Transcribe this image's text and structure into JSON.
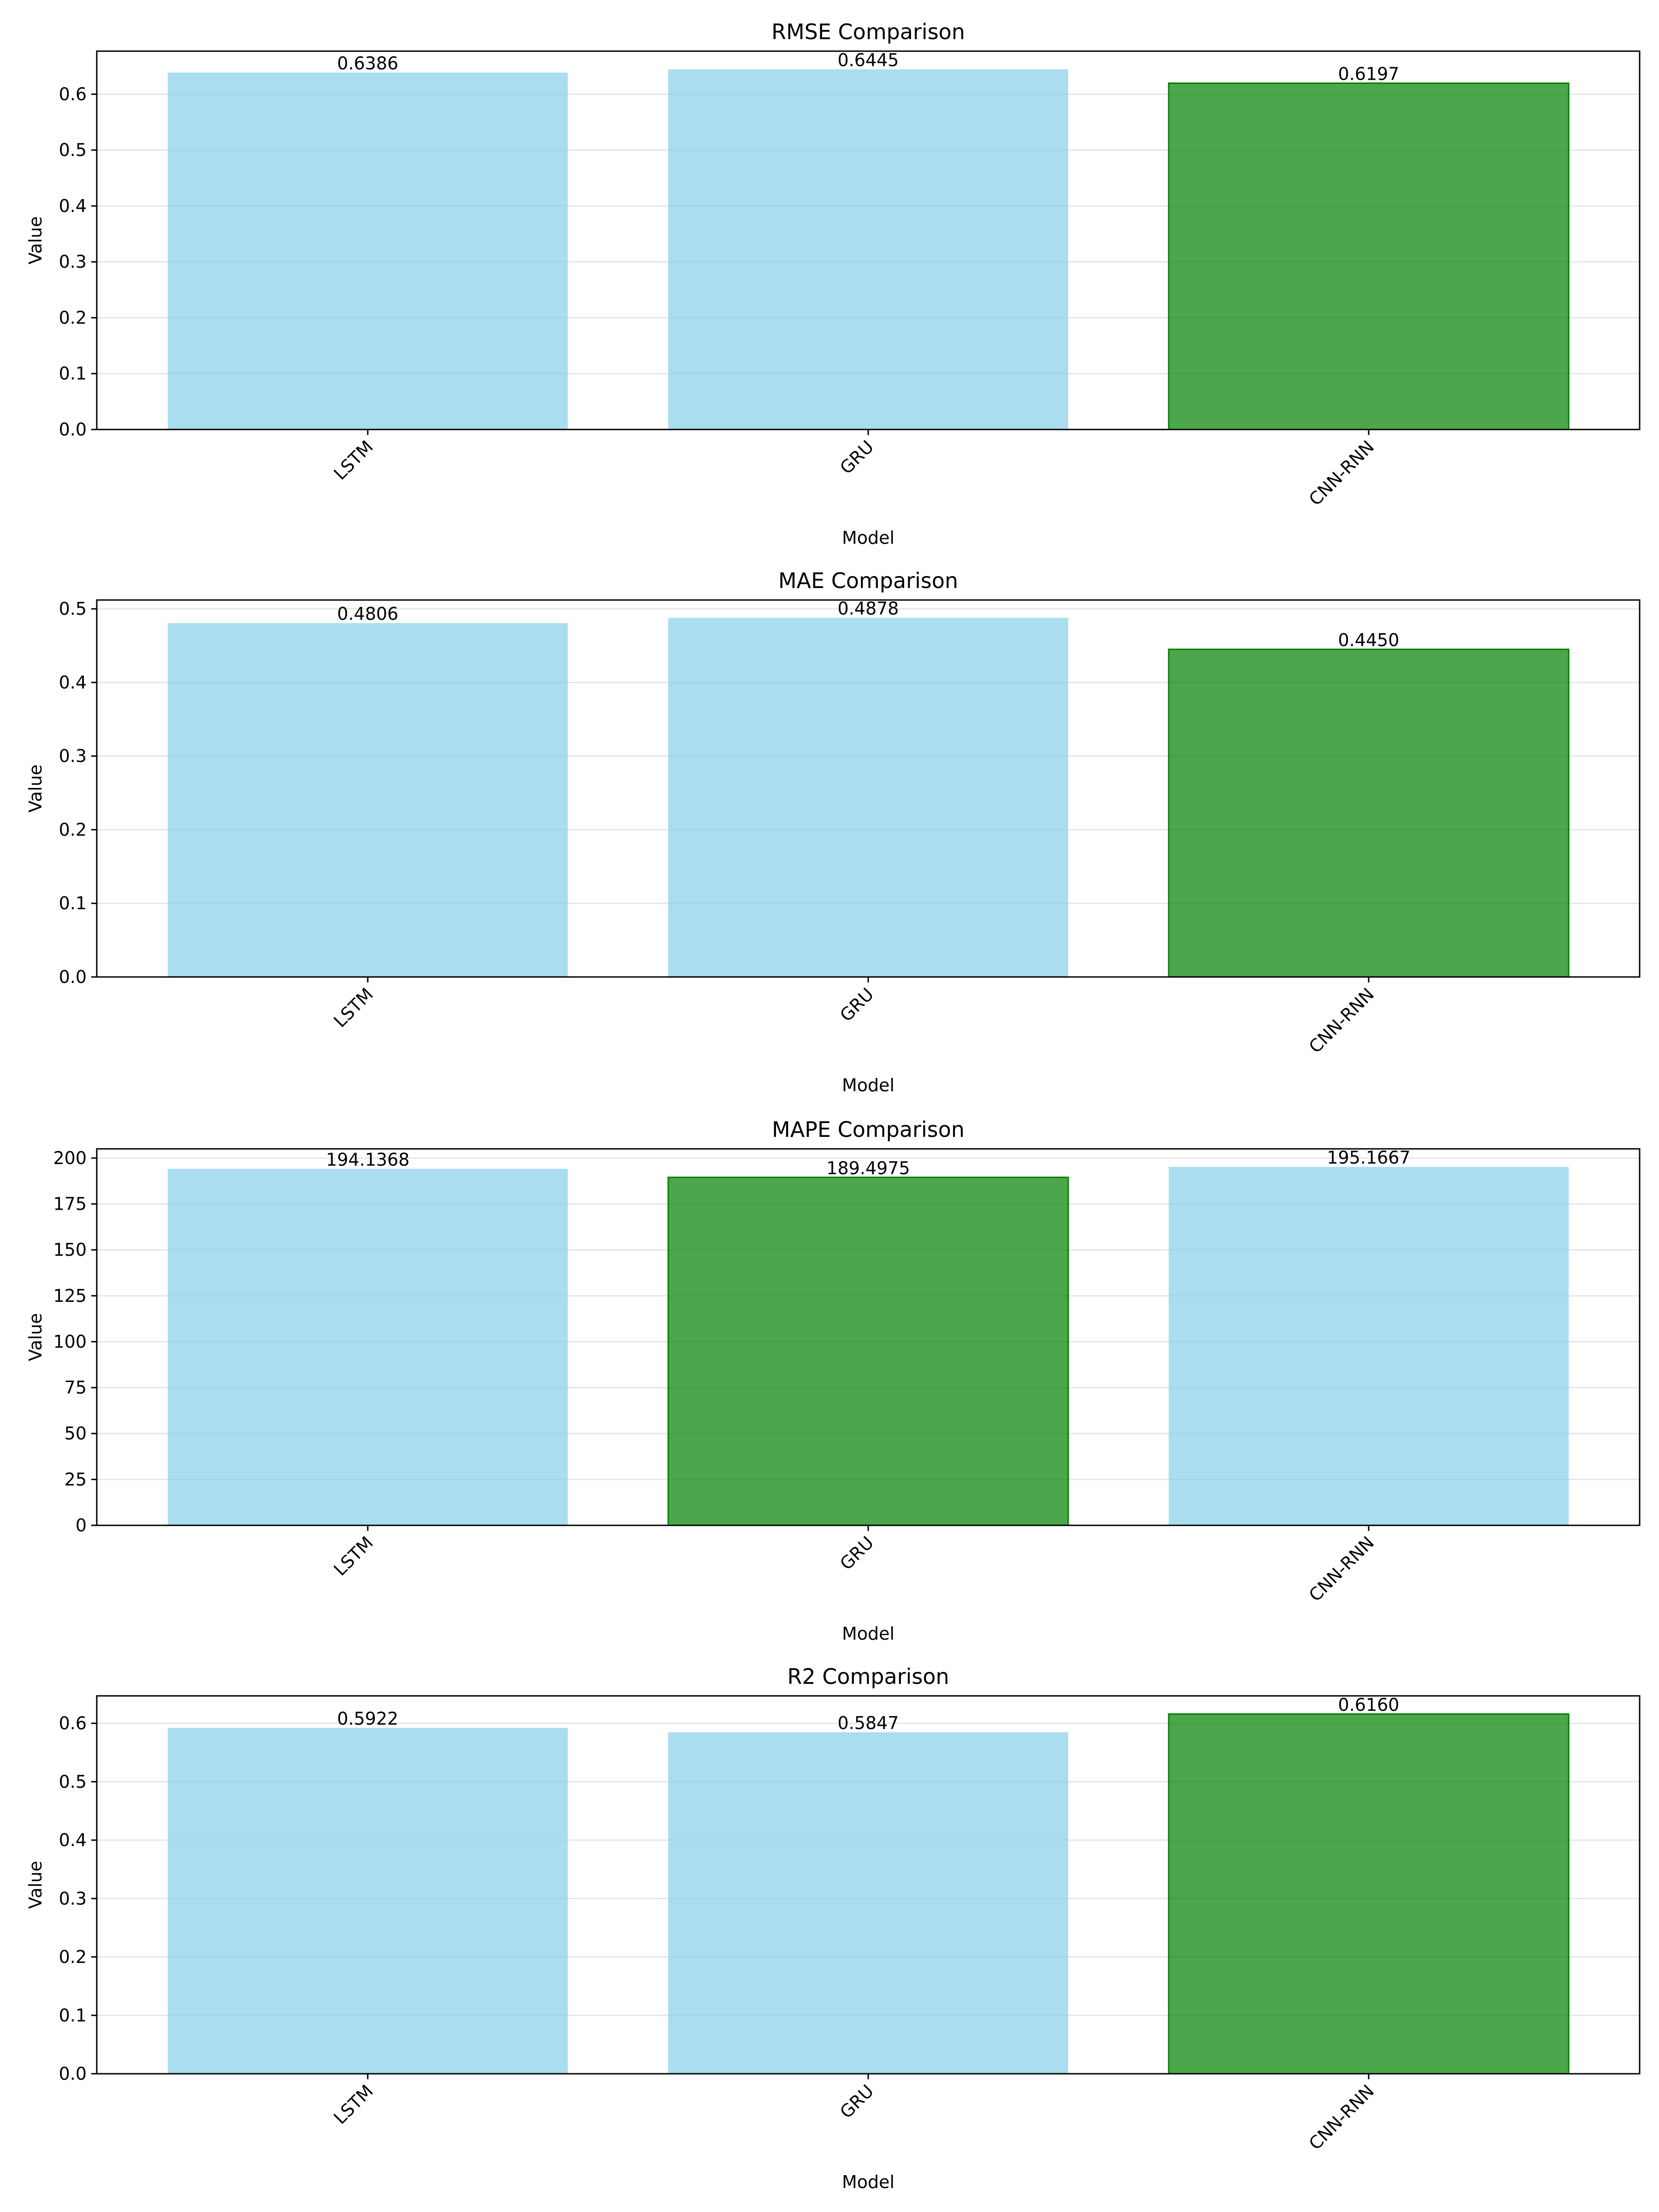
{
  "colors": {
    "default_bar": "#87ceeb",
    "best_bar": "#008000",
    "grid": "#e6e6e6",
    "axes": "#000000"
  },
  "chart_data": [
    {
      "type": "bar",
      "title": "RMSE Comparison",
      "xlabel": "Model",
      "ylabel": "Value",
      "categories": [
        "LSTM",
        "GRU",
        "CNN-RNN"
      ],
      "values": [
        0.6386,
        0.6445,
        0.6197
      ],
      "value_labels": [
        "0.6386",
        "0.6445",
        "0.6197"
      ],
      "highlight_index": 2,
      "ylim": [
        0,
        0.677
      ],
      "yticks": [
        0.0,
        0.1,
        0.2,
        0.3,
        0.4,
        0.5,
        0.6
      ],
      "ytick_labels": [
        "0.0",
        "0.1",
        "0.2",
        "0.3",
        "0.4",
        "0.5",
        "0.6"
      ],
      "grid": true,
      "legend": "none"
    },
    {
      "type": "bar",
      "title": "MAE Comparison",
      "xlabel": "Model",
      "ylabel": "Value",
      "categories": [
        "LSTM",
        "GRU",
        "CNN-RNN"
      ],
      "values": [
        0.4806,
        0.4878,
        0.445
      ],
      "value_labels": [
        "0.4806",
        "0.4878",
        "0.4450"
      ],
      "highlight_index": 2,
      "ylim": [
        0,
        0.512
      ],
      "yticks": [
        0.0,
        0.1,
        0.2,
        0.3,
        0.4,
        0.5
      ],
      "ytick_labels": [
        "0.0",
        "0.1",
        "0.2",
        "0.3",
        "0.4",
        "0.5"
      ],
      "grid": true,
      "legend": "none"
    },
    {
      "type": "bar",
      "title": "MAPE Comparison",
      "xlabel": "Model",
      "ylabel": "Value",
      "categories": [
        "LSTM",
        "GRU",
        "CNN-RNN"
      ],
      "values": [
        194.1368,
        189.4975,
        195.1667
      ],
      "value_labels": [
        "194.1368",
        "189.4975",
        "195.1667"
      ],
      "highlight_index": 1,
      "ylim": [
        0,
        205
      ],
      "yticks": [
        0,
        25,
        50,
        75,
        100,
        125,
        150,
        175,
        200
      ],
      "ytick_labels": [
        "0",
        "25",
        "50",
        "75",
        "100",
        "125",
        "150",
        "175",
        "200"
      ],
      "grid": true,
      "legend": "none"
    },
    {
      "type": "bar",
      "title": "R2 Comparison",
      "xlabel": "Model",
      "ylabel": "Value",
      "categories": [
        "LSTM",
        "GRU",
        "CNN-RNN"
      ],
      "values": [
        0.5922,
        0.5847,
        0.616
      ],
      "value_labels": [
        "0.5922",
        "0.5847",
        "0.6160"
      ],
      "highlight_index": 2,
      "ylim": [
        0,
        0.647
      ],
      "yticks": [
        0.0,
        0.1,
        0.2,
        0.3,
        0.4,
        0.5,
        0.6
      ],
      "ytick_labels": [
        "0.0",
        "0.1",
        "0.2",
        "0.3",
        "0.4",
        "0.5",
        "0.6"
      ],
      "grid": true,
      "legend": "none"
    }
  ]
}
